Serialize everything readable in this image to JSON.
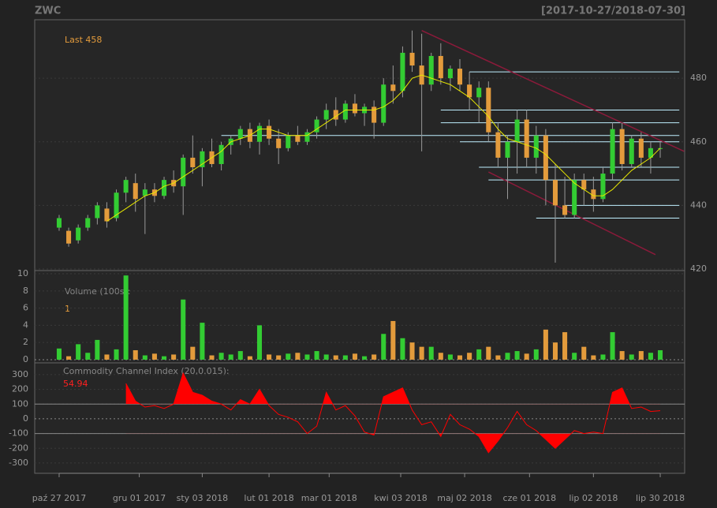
{
  "chart_data": {
    "type": "candlestick",
    "title": "ZWC",
    "subtitle": "[2017-10-27/2018-07-30]",
    "last_label": "Last 458",
    "up_color": "#33cc33",
    "down_color": "#e39b3c",
    "xlim": [
      -2.56,
      65.56
    ],
    "xticks": [
      {
        "value": 0,
        "label": "paź 27 2017"
      },
      {
        "value": 8.4,
        "label": "gru 01 2017"
      },
      {
        "value": 15,
        "label": "sty 03 2018"
      },
      {
        "value": 22,
        "label": "lut 01 2018"
      },
      {
        "value": 28.3,
        "label": "mar 01 2018"
      },
      {
        "value": 35.8,
        "label": "kwi 03 2018"
      },
      {
        "value": 42.5,
        "label": "maj 02 2018"
      },
      {
        "value": 49.3,
        "label": "cze 01 2018"
      },
      {
        "value": 56,
        "label": "lip 02 2018"
      },
      {
        "value": 63,
        "label": "lip 30 2018"
      }
    ],
    "ylim": [
      419.5,
      498.4
    ],
    "yticks": [
      420,
      440,
      460,
      480
    ],
    "ohlc": [
      [
        433,
        437,
        432,
        436
      ],
      [
        432,
        433,
        427,
        428
      ],
      [
        429,
        434,
        428,
        433
      ],
      [
        433,
        437,
        432,
        436
      ],
      [
        436,
        441,
        434,
        440
      ],
      [
        439,
        441,
        433,
        435
      ],
      [
        436,
        445,
        435,
        444
      ],
      [
        444,
        449,
        441,
        448
      ],
      [
        447,
        450,
        438,
        442
      ],
      [
        443,
        447,
        431,
        445
      ],
      [
        445,
        447,
        441,
        443
      ],
      [
        443,
        449,
        442,
        448
      ],
      [
        448,
        451,
        444,
        446
      ],
      [
        446,
        456,
        437,
        455
      ],
      [
        455,
        462,
        450,
        452
      ],
      [
        452,
        458,
        446,
        457
      ],
      [
        457,
        461,
        452,
        453
      ],
      [
        453,
        460,
        451,
        459
      ],
      [
        459,
        462,
        456,
        461
      ],
      [
        461,
        465,
        459,
        464
      ],
      [
        464,
        466,
        458,
        460
      ],
      [
        460,
        466,
        456,
        465
      ],
      [
        465,
        467,
        459,
        461
      ],
      [
        461,
        464,
        453,
        458
      ],
      [
        458,
        463,
        457,
        462
      ],
      [
        462,
        465,
        459,
        460
      ],
      [
        460,
        464,
        459,
        463
      ],
      [
        463,
        468,
        461,
        467
      ],
      [
        467,
        472,
        464,
        470
      ],
      [
        470,
        474,
        465,
        467
      ],
      [
        467,
        473,
        466,
        472
      ],
      [
        472,
        475,
        468,
        469
      ],
      [
        469,
        472,
        465,
        471
      ],
      [
        471,
        473,
        461,
        466
      ],
      [
        466,
        480,
        465,
        478
      ],
      [
        478,
        484,
        472,
        476
      ],
      [
        476,
        490,
        474,
        488
      ],
      [
        488,
        495,
        482,
        484
      ],
      [
        484,
        494,
        457,
        478
      ],
      [
        478,
        488,
        476,
        487
      ],
      [
        487,
        491,
        478,
        480
      ],
      [
        480,
        484,
        476,
        483
      ],
      [
        483,
        486,
        476,
        478
      ],
      [
        478,
        482,
        470,
        474
      ],
      [
        474,
        479,
        466,
        477
      ],
      [
        477,
        479,
        460,
        463
      ],
      [
        463,
        466,
        452,
        455
      ],
      [
        455,
        462,
        442,
        460
      ],
      [
        460,
        470,
        450,
        467
      ],
      [
        467,
        470,
        452,
        455
      ],
      [
        455,
        465,
        450,
        462
      ],
      [
        462,
        464,
        440,
        448
      ],
      [
        448,
        453,
        422,
        440
      ],
      [
        440,
        449,
        436,
        437
      ],
      [
        437,
        450,
        436,
        448
      ],
      [
        448,
        450,
        440,
        445
      ],
      [
        445,
        449,
        438,
        442
      ],
      [
        442,
        452,
        441,
        450
      ],
      [
        450,
        466,
        448,
        464
      ],
      [
        464,
        466,
        451,
        453
      ],
      [
        453,
        462,
        452,
        461
      ],
      [
        461,
        463,
        452,
        455
      ],
      [
        455,
        460,
        450,
        458
      ],
      [
        458,
        460,
        455,
        458
      ]
    ],
    "sma": {
      "color": "#e8e800",
      "values": [
        null,
        null,
        null,
        null,
        null,
        435,
        437,
        439,
        441,
        443,
        444,
        446,
        447,
        449,
        451,
        453,
        455,
        457,
        460,
        461,
        462,
        464,
        464,
        463,
        462,
        462,
        462,
        464,
        466,
        468,
        470,
        470,
        470,
        470,
        471,
        473,
        476,
        480,
        481,
        480,
        479,
        478,
        476,
        474,
        471,
        468,
        464,
        461,
        460,
        459,
        458,
        456,
        453,
        450,
        447,
        445,
        443,
        443,
        445,
        448,
        451,
        453,
        455,
        458
      ]
    },
    "levels": {
      "color": "#bfefff",
      "end": 65,
      "lines": [
        {
          "value": 482,
          "from": 43
        },
        {
          "value": 470,
          "from": 40
        },
        {
          "value": 466,
          "from": 40
        },
        {
          "value": 462,
          "from": 17
        },
        {
          "value": 460,
          "from": 42
        },
        {
          "value": 452,
          "from": 44
        },
        {
          "value": 448,
          "from": 45
        },
        {
          "value": 440,
          "from": 53
        },
        {
          "value": 436,
          "from": 50
        }
      ]
    },
    "channel": {
      "color": "#8b1a3a",
      "lines": [
        [
          [
            38,
            495
          ],
          [
            65.5,
            457
          ]
        ],
        [
          [
            45,
            450.5
          ],
          [
            62.5,
            424.5
          ]
        ]
      ]
    },
    "volume": {
      "label": "Volume (100s):",
      "last_label": "1",
      "ylim": [
        -0.37,
        10.37
      ],
      "yticks": [
        0,
        2,
        4,
        6,
        8,
        10
      ],
      "values": [
        1.3,
        0.4,
        1.8,
        0.8,
        2.3,
        0.6,
        1.2,
        9.8,
        1.1,
        0.5,
        0.7,
        0.4,
        0.6,
        7.0,
        1.5,
        4.3,
        0.5,
        0.8,
        0.6,
        1.0,
        0.4,
        4.0,
        0.6,
        0.5,
        0.7,
        0.8,
        0.6,
        1.0,
        0.6,
        0.5,
        0.5,
        0.7,
        0.4,
        0.6,
        3.0,
        4.5,
        2.5,
        2.0,
        1.5,
        1.5,
        0.8,
        0.6,
        0.5,
        0.8,
        1.2,
        1.5,
        0.5,
        0.8,
        1.0,
        0.7,
        1.2,
        3.5,
        2.0,
        3.2,
        0.8,
        1.5,
        0.5,
        0.6,
        3.2,
        1.0,
        0.6,
        1.0,
        0.8,
        1.1
      ]
    },
    "cci": {
      "label": "Commodity Channel Index (20,0.015):",
      "last_label": "54.94",
      "color": "#ff0000",
      "ylim": [
        -370,
        380
      ],
      "yticks": [
        -300,
        -200,
        -100,
        0,
        100,
        200,
        300
      ],
      "bands": [
        -100,
        100
      ],
      "values": [
        null,
        null,
        null,
        null,
        null,
        null,
        null,
        240,
        120,
        80,
        90,
        70,
        100,
        310,
        180,
        160,
        120,
        100,
        60,
        130,
        100,
        200,
        90,
        30,
        10,
        -20,
        -100,
        -50,
        180,
        60,
        90,
        20,
        -90,
        -110,
        150,
        180,
        210,
        60,
        -40,
        -20,
        -120,
        30,
        -40,
        -70,
        -120,
        -230,
        -150,
        -60,
        50,
        -40,
        -80,
        -140,
        -200,
        -140,
        -80,
        -100,
        -90,
        -100,
        180,
        210,
        70,
        80,
        50,
        54.94
      ]
    }
  }
}
